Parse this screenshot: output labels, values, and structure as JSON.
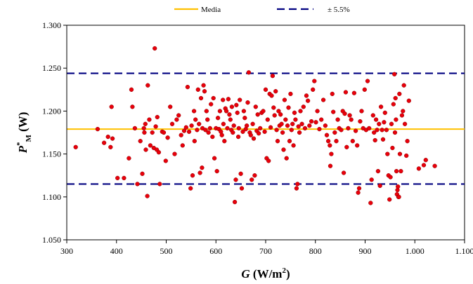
{
  "chart_data": {
    "type": "scatter",
    "xlabel": {
      "symbol": "G",
      "unit": "(W/m",
      "unit_sup": "2",
      "unit_close": ")"
    },
    "ylabel": {
      "symbol": "P",
      "sup": "*",
      "sub": "M",
      "unit": "(W)"
    },
    "xlim": [
      300,
      1100
    ],
    "ylim": [
      1.05,
      1.3
    ],
    "x_ticks": [
      300,
      400,
      500,
      600,
      700,
      800,
      900,
      1000,
      1100
    ],
    "x_tick_labels": [
      "300",
      "400",
      "500",
      "600",
      "700",
      "800",
      "900",
      "1.000",
      "1.100"
    ],
    "y_ticks": [
      1.05,
      1.1,
      1.15,
      1.2,
      1.25,
      1.3
    ],
    "y_tick_labels": [
      "1.050",
      "1.100",
      "1.150",
      "1.200",
      "1.250",
      "1.300"
    ],
    "grid": false,
    "legend_position": "top-center",
    "legend": [
      {
        "label": "Media",
        "style": "solid",
        "color": "#FFC000"
      },
      {
        "label": "± 5.5%",
        "style": "dashed",
        "color": "#000080"
      }
    ],
    "reference_lines": {
      "mean": 1.179,
      "upper": 1.244,
      "lower": 1.115
    },
    "marker_color": "#E8000B",
    "series": [
      {
        "values": [
          [
            318,
            1.158
          ],
          [
            362,
            1.179
          ],
          [
            375,
            1.163
          ],
          [
            383,
            1.17
          ],
          [
            388,
            1.158
          ],
          [
            390,
            1.205
          ],
          [
            392,
            1.168
          ],
          [
            402,
            1.122
          ],
          [
            415,
            1.122
          ],
          [
            425,
            1.145
          ],
          [
            430,
            1.225
          ],
          [
            432,
            1.205
          ],
          [
            437,
            1.18
          ],
          [
            442,
            1.115
          ],
          [
            448,
            1.165
          ],
          [
            452,
            1.127
          ],
          [
            455,
            1.18
          ],
          [
            456,
            1.175
          ],
          [
            458,
            1.185
          ],
          [
            459,
            1.155
          ],
          [
            462,
            1.101
          ],
          [
            463,
            1.23
          ],
          [
            466,
            1.19
          ],
          [
            468,
            1.16
          ],
          [
            472,
            1.175
          ],
          [
            475,
            1.157
          ],
          [
            477,
            1.273
          ],
          [
            479,
            1.182
          ],
          [
            481,
            1.155
          ],
          [
            482,
            1.193
          ],
          [
            485,
            1.152
          ],
          [
            487,
            1.115
          ],
          [
            492,
            1.176
          ],
          [
            495,
            1.175
          ],
          [
            499,
            1.142
          ],
          [
            503,
            1.169
          ],
          [
            508,
            1.205
          ],
          [
            512,
            1.185
          ],
          [
            517,
            1.15
          ],
          [
            521,
            1.19
          ],
          [
            525,
            1.195
          ],
          [
            530,
            1.172
          ],
          [
            533,
            1.16
          ],
          [
            536,
            1.177
          ],
          [
            540,
            1.181
          ],
          [
            543,
            1.228
          ],
          [
            546,
            1.176
          ],
          [
            549,
            1.11
          ],
          [
            551,
            1.183
          ],
          [
            553,
            1.125
          ],
          [
            556,
            1.2
          ],
          [
            557,
            1.165
          ],
          [
            559,
            1.19
          ],
          [
            562,
            1.178
          ],
          [
            564,
            1.225
          ],
          [
            566,
            1.185
          ],
          [
            568,
            1.128
          ],
          [
            570,
            1.215
          ],
          [
            572,
            1.134
          ],
          [
            573,
            1.18
          ],
          [
            575,
            1.23
          ],
          [
            577,
            1.223
          ],
          [
            579,
            1.178
          ],
          [
            581,
            1.2
          ],
          [
            583,
            1.19
          ],
          [
            585,
            1.175
          ],
          [
            588,
            1.18
          ],
          [
            590,
            1.208
          ],
          [
            593,
            1.17
          ],
          [
            595,
            1.215
          ],
          [
            597,
            1.145
          ],
          [
            600,
            1.18
          ],
          [
            602,
            1.13
          ],
          [
            604,
            1.192
          ],
          [
            606,
            1.179
          ],
          [
            608,
            1.2
          ],
          [
            610,
            1.176
          ],
          [
            612,
            1.172
          ],
          [
            614,
            1.213
          ],
          [
            615,
            1.185
          ],
          [
            617,
            1.165
          ],
          [
            619,
            1.203
          ],
          [
            621,
            1.2
          ],
          [
            623,
            1.18
          ],
          [
            625,
            1.214
          ],
          [
            627,
            1.196
          ],
          [
            629,
            1.19
          ],
          [
            631,
            1.178
          ],
          [
            632,
            1.205
          ],
          [
            634,
            1.175
          ],
          [
            636,
            1.183
          ],
          [
            638,
            1.094
          ],
          [
            640,
            1.12
          ],
          [
            641,
            1.207
          ],
          [
            643,
            1.198
          ],
          [
            645,
            1.17
          ],
          [
            646,
            1.18
          ],
          [
            648,
            1.213
          ],
          [
            650,
            1.127
          ],
          [
            652,
            1.11
          ],
          [
            654,
            1.176
          ],
          [
            656,
            1.2
          ],
          [
            658,
            1.192
          ],
          [
            660,
            1.179
          ],
          [
            662,
            1.183
          ],
          [
            664,
            1.21
          ],
          [
            666,
            1.245
          ],
          [
            668,
            1.175
          ],
          [
            670,
            1.172
          ],
          [
            672,
            1.12
          ],
          [
            674,
            1.185
          ],
          [
            676,
            1.168
          ],
          [
            678,
            1.125
          ],
          [
            680,
            1.205
          ],
          [
            682,
            1.177
          ],
          [
            684,
            1.196
          ],
          [
            686,
            1.174
          ],
          [
            689,
            1.18
          ],
          [
            692,
            1.198
          ],
          [
            695,
            1.2
          ],
          [
            698,
            1.176
          ],
          [
            700,
            1.225
          ],
          [
            702,
            1.145
          ],
          [
            704,
            1.19
          ],
          [
            706,
            1.142
          ],
          [
            708,
            1.22
          ],
          [
            710,
            1.181
          ],
          [
            712,
            1.218
          ],
          [
            714,
            1.241
          ],
          [
            716,
            1.204
          ],
          [
            718,
            1.195
          ],
          [
            720,
            1.223
          ],
          [
            722,
            1.178
          ],
          [
            724,
            1.165
          ],
          [
            726,
            1.2
          ],
          [
            728,
            1.183
          ],
          [
            730,
            1.196
          ],
          [
            732,
            1.185
          ],
          [
            734,
            1.175
          ],
          [
            736,
            1.155
          ],
          [
            738,
            1.213
          ],
          [
            740,
            1.19
          ],
          [
            742,
            1.145
          ],
          [
            744,
            1.183
          ],
          [
            746,
            1.204
          ],
          [
            748,
            1.165
          ],
          [
            750,
            1.22
          ],
          [
            752,
            1.178
          ],
          [
            754,
            1.185
          ],
          [
            756,
            1.16
          ],
          [
            758,
            1.198
          ],
          [
            760,
            1.19
          ],
          [
            762,
            1.11
          ],
          [
            764,
            1.115
          ],
          [
            766,
            1.182
          ],
          [
            768,
            1.175
          ],
          [
            770,
            1.2
          ],
          [
            773,
            1.185
          ],
          [
            776,
            1.205
          ],
          [
            779,
            1.18
          ],
          [
            782,
            1.218
          ],
          [
            785,
            1.212
          ],
          [
            788,
            1.183
          ],
          [
            792,
            1.188
          ],
          [
            795,
            1.225
          ],
          [
            798,
            1.235
          ],
          [
            801,
            1.187
          ],
          [
            804,
            1.2
          ],
          [
            808,
            1.179
          ],
          [
            812,
            1.19
          ],
          [
            816,
            1.213
          ],
          [
            820,
            1.183
          ],
          [
            823,
            1.172
          ],
          [
            826,
            1.165
          ],
          [
            829,
            1.16
          ],
          [
            830,
            1.136
          ],
          [
            832,
            1.15
          ],
          [
            834,
            1.22
          ],
          [
            836,
            1.199
          ],
          [
            839,
            1.175
          ],
          [
            842,
            1.165
          ],
          [
            845,
            1.19
          ],
          [
            848,
            1.18
          ],
          [
            852,
            1.178
          ],
          [
            855,
            1.2
          ],
          [
            857,
            1.128
          ],
          [
            859,
            1.197
          ],
          [
            861,
            1.222
          ],
          [
            863,
            1.158
          ],
          [
            866,
            1.18
          ],
          [
            869,
            1.195
          ],
          [
            872,
            1.19
          ],
          [
            875,
            1.165
          ],
          [
            878,
            1.221
          ],
          [
            881,
            1.177
          ],
          [
            884,
            1.16
          ],
          [
            886,
            1.105
          ],
          [
            888,
            1.11
          ],
          [
            890,
            1.188
          ],
          [
            893,
            1.2
          ],
          [
            896,
            1.18
          ],
          [
            899,
            1.225
          ],
          [
            902,
            1.178
          ],
          [
            905,
            1.235
          ],
          [
            908,
            1.18
          ],
          [
            911,
            1.093
          ],
          [
            913,
            1.12
          ],
          [
            916,
            1.195
          ],
          [
            918,
            1.175
          ],
          [
            920,
            1.166
          ],
          [
            922,
            1.19
          ],
          [
            924,
            1.178
          ],
          [
            926,
            1.13
          ],
          [
            928,
            1.185
          ],
          [
            930,
            1.113
          ],
          [
            932,
            1.205
          ],
          [
            934,
            1.178
          ],
          [
            936,
            1.167
          ],
          [
            938,
            1.187
          ],
          [
            940,
            1.198
          ],
          [
            943,
            1.178
          ],
          [
            945,
            1.15
          ],
          [
            947,
            1.125
          ],
          [
            949,
            1.097
          ],
          [
            951,
            1.123
          ],
          [
            953,
            1.185
          ],
          [
            955,
            1.157
          ],
          [
            957,
            1.208
          ],
          [
            959,
            1.243
          ],
          [
            960,
            1.175
          ],
          [
            961,
            1.215
          ],
          [
            962,
            1.19
          ],
          [
            963,
            1.13
          ],
          [
            964,
            1.103
          ],
          [
            965,
            1.108
          ],
          [
            966,
            1.112
          ],
          [
            967,
            1.1
          ],
          [
            968,
            1.1
          ],
          [
            969,
            1.22
          ],
          [
            970,
            1.15
          ],
          [
            972,
            1.13
          ],
          [
            974,
            1.195
          ],
          [
            976,
            1.2
          ],
          [
            978,
            1.23
          ],
          [
            980,
            1.185
          ],
          [
            983,
            1.148
          ],
          [
            985,
            1.165
          ],
          [
            988,
            1.212
          ],
          [
            1008,
            1.133
          ],
          [
            1018,
            1.137
          ],
          [
            1022,
            1.143
          ],
          [
            1040,
            1.136
          ]
        ]
      }
    ]
  }
}
